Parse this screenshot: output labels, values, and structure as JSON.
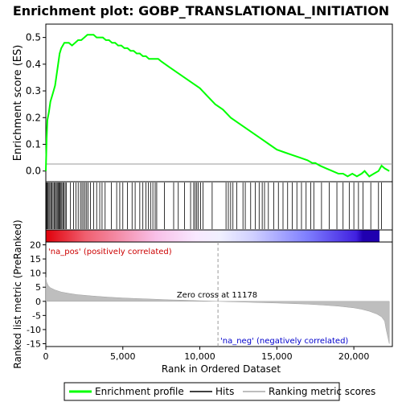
{
  "chart_data": {
    "type": "line",
    "title": "Enrichment plot: GOBP_TRANSLATIONAL_INITIATION",
    "top_panel": {
      "ylabel": "Enrichment score (ES)",
      "ylim": [
        -0.04,
        0.55
      ],
      "yticks": [
        "0.0",
        "0.1",
        "0.2",
        "0.3",
        "0.4",
        "0.5"
      ],
      "series": [
        {
          "name": "Enrichment profile",
          "color": "#00ff00",
          "x": [
            0,
            50,
            100,
            200,
            300,
            400,
            500,
            600,
            700,
            800,
            900,
            1000,
            1100,
            1200,
            1300,
            1500,
            1700,
            1900,
            2100,
            2300,
            2500,
            2700,
            2900,
            3100,
            3300,
            3500,
            3700,
            3900,
            4100,
            4300,
            4500,
            4700,
            4900,
            5100,
            5300,
            5500,
            5700,
            5900,
            6100,
            6300,
            6500,
            6700,
            6900,
            7100,
            7300,
            7500,
            8000,
            8500,
            9000,
            9500,
            10000,
            10500,
            11000,
            11500,
            12000,
            12500,
            13000,
            13500,
            14000,
            14500,
            15000,
            15500,
            16000,
            16500,
            17000,
            17300,
            17500,
            17800,
            18200,
            18600,
            19000,
            19300,
            19600,
            19900,
            20200,
            20500,
            20700,
            21000,
            21300,
            21600,
            21800,
            22000,
            22300
          ],
          "values": [
            0.0,
            0.12,
            0.19,
            0.22,
            0.26,
            0.28,
            0.3,
            0.32,
            0.36,
            0.4,
            0.44,
            0.46,
            0.47,
            0.48,
            0.48,
            0.48,
            0.47,
            0.48,
            0.49,
            0.49,
            0.5,
            0.51,
            0.51,
            0.51,
            0.5,
            0.5,
            0.5,
            0.49,
            0.49,
            0.48,
            0.48,
            0.47,
            0.47,
            0.46,
            0.46,
            0.45,
            0.45,
            0.44,
            0.44,
            0.43,
            0.43,
            0.42,
            0.42,
            0.42,
            0.42,
            0.41,
            0.39,
            0.37,
            0.35,
            0.33,
            0.31,
            0.28,
            0.25,
            0.23,
            0.2,
            0.18,
            0.16,
            0.14,
            0.12,
            0.1,
            0.08,
            0.07,
            0.06,
            0.05,
            0.04,
            0.03,
            0.03,
            0.02,
            0.01,
            0.0,
            -0.01,
            -0.01,
            -0.02,
            -0.01,
            -0.02,
            -0.01,
            0.0,
            -0.02,
            -0.01,
            0.0,
            0.02,
            0.01,
            0.0
          ]
        }
      ]
    },
    "hits": [
      30,
      80,
      130,
      200,
      260,
      330,
      400,
      470,
      540,
      610,
      680,
      740,
      800,
      860,
      920,
      980,
      1040,
      1110,
      1180,
      1260,
      1340,
      1600,
      1800,
      1950,
      2100,
      2250,
      2350,
      2450,
      2550,
      2650,
      2750,
      2900,
      3100,
      3300,
      3500,
      3650,
      3850,
      4250,
      4600,
      4800,
      5000,
      5300,
      5600,
      5800,
      6100,
      6300,
      6500,
      6650,
      6800,
      6950,
      7100,
      7200,
      7700,
      8300,
      8600,
      9000,
      9400,
      9600,
      9700,
      9800,
      9900,
      10050,
      10200,
      10800,
      11700,
      11850,
      12000,
      12150,
      12400,
      12800,
      12950,
      13300,
      13600,
      13850,
      14050,
      14200,
      14450,
      14800,
      15100,
      15400,
      15700,
      16000,
      16300,
      16600,
      16900,
      17200,
      17400,
      17900,
      18400,
      18900,
      19300,
      19700,
      20000,
      20300,
      20600,
      21100,
      21600,
      21800
    ],
    "middle_panel": {
      "ylabel": "Ranked list metric (PreRanked)",
      "ylim": [
        -16,
        21
      ],
      "yticks": [
        "-15",
        "-10",
        "-5",
        "0",
        "5",
        "10",
        "15",
        "20"
      ],
      "xlabel": "Rank in Ordered Dataset",
      "xlim": [
        0,
        22500
      ],
      "xticks": [
        "0",
        "5,000",
        "10,000",
        "15,000",
        "20,000"
      ],
      "metric_profile": {
        "x": [
          0,
          50,
          150,
          300,
          600,
          1000,
          1500,
          2000,
          3000,
          4000,
          5000,
          6000,
          7000,
          8000,
          9000,
          10000,
          11178,
          12000,
          13000,
          14000,
          15000,
          16000,
          17000,
          18000,
          19000,
          20000,
          20500,
          21000,
          21500,
          21800,
          22000,
          22100,
          22300
        ],
        "values": [
          8.5,
          6.8,
          5.6,
          4.8,
          4.0,
          3.3,
          2.8,
          2.4,
          1.9,
          1.5,
          1.2,
          0.95,
          0.75,
          0.55,
          0.38,
          0.2,
          0.0,
          -0.15,
          -0.3,
          -0.45,
          -0.6,
          -0.8,
          -1.0,
          -1.3,
          -1.7,
          -2.3,
          -2.8,
          -3.5,
          -4.5,
          -5.5,
          -7.0,
          -10.0,
          -15.0
        ]
      },
      "zero_cross_label": "Zero cross at 11178",
      "zero_cross": 11178,
      "pos_label": "'na_pos' (positively correlated)",
      "neg_label": "'na_neg' (negatively correlated)"
    },
    "legend": [
      "Enrichment profile",
      "Hits",
      "Ranking metric scores"
    ],
    "colors": {
      "enrichment_line": "#00ff00",
      "hits": "#000000",
      "metric_fill": "#bebebe",
      "pos_label": "#cc0000",
      "neg_label": "#0000cc",
      "zero_cross_line": "#999999",
      "bar_pos": "#e0000a",
      "bar_mid": "#ffffff",
      "bar_neg": "#2000d0"
    }
  }
}
